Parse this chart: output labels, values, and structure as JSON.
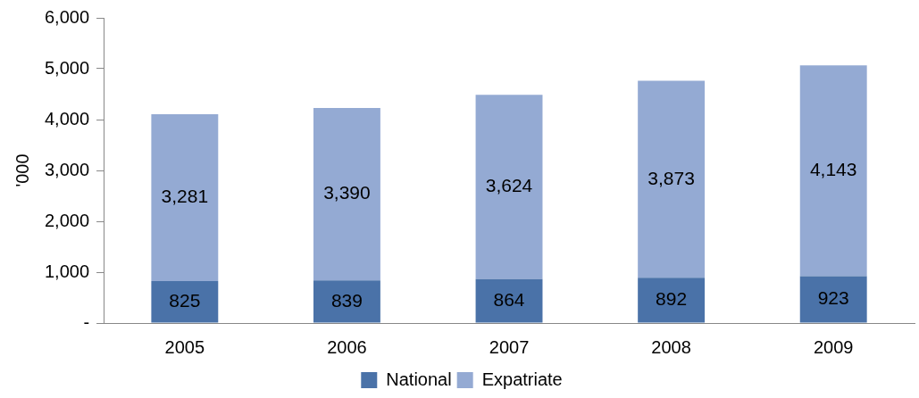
{
  "chart_data": {
    "type": "bar",
    "stacked": true,
    "ylabel": "'000",
    "categories": [
      "2005",
      "2006",
      "2007",
      "2008",
      "2009"
    ],
    "series": [
      {
        "name": "National",
        "color": "#4a72a8",
        "values": [
          825,
          839,
          864,
          892,
          923
        ],
        "value_labels": [
          "825",
          "839",
          "864",
          "892",
          "923"
        ]
      },
      {
        "name": "Expatriate",
        "color": "#94aad3",
        "values": [
          3281,
          3390,
          3624,
          3873,
          4143
        ],
        "value_labels": [
          "3,281",
          "3,390",
          "3,624",
          "3,873",
          "4,143"
        ]
      }
    ],
    "ylim": [
      0,
      6000
    ],
    "yticks": [
      {
        "value": 0,
        "label": "-"
      },
      {
        "value": 1000,
        "label": "1,000"
      },
      {
        "value": 2000,
        "label": "2,000"
      },
      {
        "value": 3000,
        "label": "3,000"
      },
      {
        "value": 4000,
        "label": "4,000"
      },
      {
        "value": 5000,
        "label": "5,000"
      },
      {
        "value": 6000,
        "label": "6,000"
      }
    ],
    "grid": false,
    "legend": "bottom"
  }
}
